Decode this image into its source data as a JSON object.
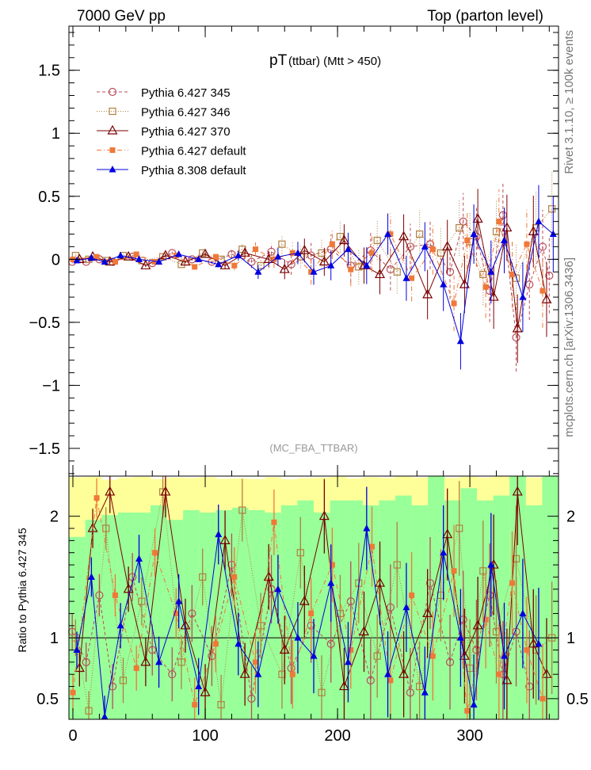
{
  "header": {
    "left": "7000 GeV pp",
    "right": "Top (parton level)"
  },
  "side": {
    "rivet": "Rivet 3.1.10, ≥ 100k events",
    "mcplots": "mcplots.cern.ch [arXiv:1306.3436]"
  },
  "plot": {
    "title_main": "pT",
    "title_sub": "(ttbar) (Mtt > 450)",
    "watermark": "(MC_FBA_TTBAR)",
    "ratio_ylabel": "Ratio to Pythia 6.427 345"
  },
  "chart_data": {
    "type": "scatter",
    "title": "pT (ttbar) (Mtt > 450)",
    "xlabel": "",
    "ylabel": "",
    "xlim": [
      -3,
      367
    ],
    "ylim": [
      -1.72,
      1.85
    ],
    "xticks": [
      0,
      100,
      200,
      300
    ],
    "yticks": [
      -1.5,
      -1,
      -0.5,
      0,
      0.5,
      1,
      1.5
    ],
    "ratio": {
      "ylabel": "Ratio to Pythia 6.427 345",
      "ylim": [
        0.33,
        2.33
      ],
      "yticks": [
        0.5,
        1,
        2
      ],
      "band_inner": "#99ff99",
      "band_outer": "#ffff99"
    },
    "legend_position": "top-left",
    "series": [
      {
        "name": "Pythia 6.427 345",
        "color": "#b84d5a",
        "marker": "circle-open",
        "line": "dashed",
        "points": [
          [
            -0.5,
            -0.02
          ],
          [
            10,
            -0.02
          ],
          [
            20,
            0.0
          ],
          [
            30,
            -0.02
          ],
          [
            45,
            0.02
          ],
          [
            60,
            -0.03
          ],
          [
            75,
            0.05
          ],
          [
            90,
            0.0
          ],
          [
            105,
            -0.02
          ],
          [
            120,
            0.04
          ],
          [
            135,
            -0.02
          ],
          [
            150,
            0.06
          ],
          [
            165,
            -0.04
          ],
          [
            180,
            0.03
          ],
          [
            195,
            0.08
          ],
          [
            210,
            -0.05
          ],
          [
            225,
            0.07
          ],
          [
            240,
            -0.08
          ],
          [
            255,
            0.1
          ],
          [
            270,
            0.12
          ],
          [
            285,
            -0.1
          ],
          [
            295,
            0.3
          ],
          [
            305,
            0.18
          ],
          [
            315,
            -0.25
          ],
          [
            325,
            0.35
          ],
          [
            335,
            -0.62
          ],
          [
            345,
            -0.2
          ],
          [
            355,
            0.1
          ],
          [
            360,
            -0.13
          ]
        ]
      },
      {
        "name": "Pythia 6.427 346",
        "color": "#b08040",
        "marker": "square-open",
        "line": "dotted",
        "points": [
          [
            2,
            0.03
          ],
          [
            12,
            0.0
          ],
          [
            25,
            -0.01
          ],
          [
            38,
            0.03
          ],
          [
            52,
            -0.01
          ],
          [
            68,
            0.02
          ],
          [
            82,
            -0.04
          ],
          [
            98,
            0.05
          ],
          [
            112,
            0.0
          ],
          [
            128,
            0.08
          ],
          [
            142,
            -0.05
          ],
          [
            158,
            0.12
          ],
          [
            172,
            0.02
          ],
          [
            188,
            0.05
          ],
          [
            202,
            0.18
          ],
          [
            216,
            -0.06
          ],
          [
            230,
            0.15
          ],
          [
            245,
            -0.1
          ],
          [
            262,
            0.2
          ],
          [
            278,
            0.05
          ],
          [
            292,
            0.25
          ],
          [
            300,
            0.14
          ],
          [
            310,
            -0.12
          ],
          [
            320,
            0.22
          ],
          [
            335,
            -0.15
          ],
          [
            350,
            0.25
          ],
          [
            362,
            0.4
          ]
        ]
      },
      {
        "name": "Pythia 6.427 370",
        "color": "#7a0000",
        "marker": "triangle-open",
        "line": "solid",
        "points": [
          [
            5,
            0.0
          ],
          [
            15,
            0.02
          ],
          [
            28,
            -0.02
          ],
          [
            42,
            0.02
          ],
          [
            55,
            -0.05
          ],
          [
            70,
            0.03
          ],
          [
            85,
            -0.02
          ],
          [
            100,
            0.04
          ],
          [
            115,
            -0.05
          ],
          [
            130,
            0.05
          ],
          [
            148,
            0.0
          ],
          [
            160,
            -0.08
          ],
          [
            175,
            0.07
          ],
          [
            190,
            -0.02
          ],
          [
            205,
            0.15
          ],
          [
            220,
            -0.05
          ],
          [
            232,
            -0.12
          ],
          [
            250,
            0.18
          ],
          [
            268,
            -0.28
          ],
          [
            283,
            0.1
          ],
          [
            296,
            -0.2
          ],
          [
            306,
            0.32
          ],
          [
            318,
            -0.3
          ],
          [
            328,
            0.25
          ],
          [
            336,
            -0.55
          ],
          [
            348,
            0.22
          ],
          [
            358,
            -0.32
          ]
        ]
      },
      {
        "name": "Pythia 6.427 default",
        "color": "#f07838",
        "marker": "square-filled",
        "line": "dashdot",
        "points": [
          [
            0,
            0.0
          ],
          [
            18,
            0.02
          ],
          [
            32,
            -0.02
          ],
          [
            48,
            0.04
          ],
          [
            62,
            -0.02
          ],
          [
            78,
            0.03
          ],
          [
            92,
            -0.06
          ],
          [
            108,
            0.02
          ],
          [
            122,
            -0.05
          ],
          [
            138,
            0.08
          ],
          [
            152,
            0.0
          ],
          [
            166,
            0.05
          ],
          [
            180,
            -0.1
          ],
          [
            196,
            0.12
          ],
          [
            210,
            -0.08
          ],
          [
            226,
            0.05
          ],
          [
            240,
            0.2
          ],
          [
            256,
            -0.15
          ],
          [
            272,
            0.08
          ],
          [
            288,
            -0.35
          ],
          [
            298,
            0.15
          ],
          [
            312,
            -0.22
          ],
          [
            322,
            0.3
          ],
          [
            332,
            -0.12
          ],
          [
            343,
            0.12
          ],
          [
            355,
            -0.25
          ]
        ]
      },
      {
        "name": "Pythia 8.308 default",
        "color": "#0000e0",
        "marker": "triangle-filled",
        "line": "solid",
        "points": [
          [
            3,
            -0.01
          ],
          [
            14,
            0.01
          ],
          [
            24,
            -0.02
          ],
          [
            36,
            0.03
          ],
          [
            50,
            0.0
          ],
          [
            65,
            -0.02
          ],
          [
            80,
            0.04
          ],
          [
            95,
            0.0
          ],
          [
            110,
            -0.04
          ],
          [
            125,
            0.03
          ],
          [
            140,
            -0.1
          ],
          [
            155,
            0.02
          ],
          [
            170,
            0.05
          ],
          [
            182,
            -0.1
          ],
          [
            195,
            -0.05
          ],
          [
            208,
            0.08
          ],
          [
            222,
            -0.05
          ],
          [
            238,
            0.2
          ],
          [
            252,
            -0.15
          ],
          [
            266,
            0.1
          ],
          [
            280,
            -0.2
          ],
          [
            293,
            -0.65
          ],
          [
            303,
            0.2
          ],
          [
            316,
            -0.1
          ],
          [
            326,
            0.15
          ],
          [
            340,
            -0.3
          ],
          [
            352,
            0.3
          ],
          [
            363,
            0.2
          ]
        ]
      }
    ]
  }
}
